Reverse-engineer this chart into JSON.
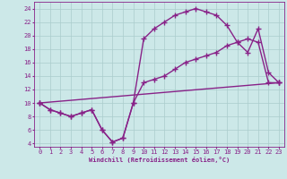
{
  "xlabel": "Windchill (Refroidissement éolien,°C)",
  "background_color": "#cce8e8",
  "grid_color": "#aacccc",
  "line_color": "#882288",
  "xlim": [
    -0.5,
    23.5
  ],
  "ylim": [
    3.5,
    25
  ],
  "yticks": [
    4,
    6,
    8,
    10,
    12,
    14,
    16,
    18,
    20,
    22,
    24
  ],
  "xticks": [
    0,
    1,
    2,
    3,
    4,
    5,
    6,
    7,
    8,
    9,
    10,
    11,
    12,
    13,
    14,
    15,
    16,
    17,
    18,
    19,
    20,
    21,
    22,
    23
  ],
  "line1_x": [
    0,
    1,
    2,
    3,
    4,
    5,
    6,
    7,
    8,
    9,
    10,
    11,
    12,
    13,
    14,
    15,
    16,
    17,
    18,
    19,
    20,
    21,
    22,
    23
  ],
  "line1_y": [
    10,
    9,
    8.5,
    8,
    8.5,
    9,
    6,
    4.2,
    4.8,
    10,
    13,
    13.5,
    14,
    15,
    16,
    16.5,
    17,
    17.5,
    18.5,
    19,
    19.5,
    19,
    13,
    13
  ],
  "line2_x": [
    0,
    1,
    2,
    3,
    4,
    5,
    6,
    7,
    8,
    9,
    10,
    11,
    12,
    13,
    14,
    15,
    16,
    17,
    18,
    19,
    20,
    21,
    22,
    23
  ],
  "line2_y": [
    10,
    9,
    8.5,
    8,
    8.5,
    9,
    6,
    4.2,
    4.8,
    10,
    19.5,
    21,
    22,
    23,
    23.5,
    24,
    23.5,
    23,
    21.5,
    19,
    17.5,
    21,
    14.5,
    13
  ],
  "line3_x": [
    0,
    23
  ],
  "line3_y": [
    10,
    13
  ],
  "markersize": 3,
  "linewidth": 1.0
}
